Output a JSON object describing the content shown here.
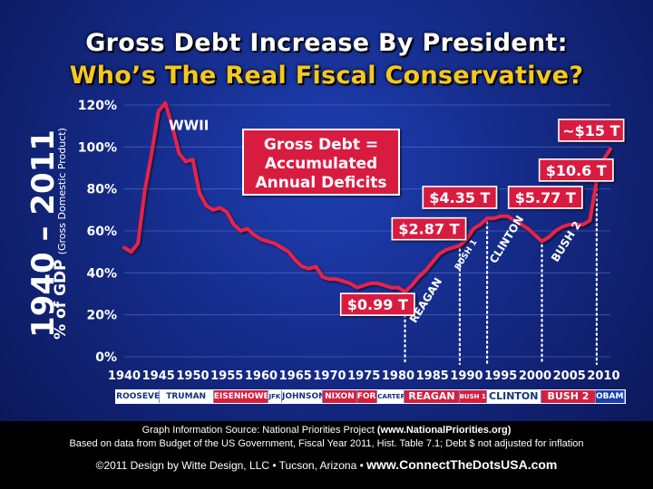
{
  "title_line1": "Gross Debt Increase By President:",
  "title_line2": "Who’s The Real Fiscal Conservative?",
  "side_years": "1940 – 2011",
  "side_ylabel_main": "% of GDP",
  "side_ylabel_sub": "(Gross Domestic Product)",
  "callout_box": [
    "Gross Debt =",
    "Accumulated",
    "Annual Deficits"
  ],
  "footer": {
    "line1_pre": "Graph Information Source: National Priorities Project ",
    "line1_bold": "(www.NationalPriorities.org)",
    "line2": "Based on data from Budget of the US Government, Fiscal Year 2011, Hist. Table 7.1; Debt $ not adjusted for inflation",
    "line3_pre": "©2011 Design by Witte Design, LLC • Tucson, Arizona  •  ",
    "line3_bold": "www.ConnectTheDotsUSA.com"
  },
  "presidents": [
    {
      "name": "ROOSEVELT",
      "start": 1940,
      "end": 1945,
      "color": "#1a3fa8"
    },
    {
      "name": "TRUMAN",
      "start": 1945,
      "end": 1953,
      "color": "#1a3fa8"
    },
    {
      "name": "EISENHOWER",
      "start": 1953,
      "end": 1961,
      "color": "#d42040"
    },
    {
      "name": "JFK",
      "start": 1961,
      "end": 1963,
      "color": "#1a3fa8"
    },
    {
      "name": "JOHNSON",
      "start": 1963,
      "end": 1969,
      "color": "#1a3fa8"
    },
    {
      "name": "NIXON",
      "start": 1969,
      "end": 1974,
      "color": "#d42040"
    },
    {
      "name": "FORD",
      "start": 1974,
      "end": 1977,
      "color": "#d42040"
    },
    {
      "name": "CARTER",
      "start": 1977,
      "end": 1981,
      "color": "#1a3fa8"
    },
    {
      "name": "REAGAN",
      "start": 1981,
      "end": 1989,
      "color": "#d42040"
    },
    {
      "name": "BUSH 1",
      "start": 1989,
      "end": 1993,
      "color": "#d42040"
    },
    {
      "name": "CLINTON",
      "start": 1993,
      "end": 2001,
      "color": "#1a3fa8"
    },
    {
      "name": "BUSH 2",
      "start": 2001,
      "end": 2009,
      "color": "#d42040"
    },
    {
      "name": "OBAMA",
      "start": 2009,
      "end": 2011,
      "color": "#1a3fa8"
    }
  ],
  "chart_data": {
    "type": "line",
    "title": "Gross Debt Increase By President",
    "subtitle": "Who’s The Real Fiscal Conservative?",
    "xlabel": "",
    "ylabel": "% of GDP (Gross Domestic Product)",
    "xlim": [
      1940,
      2011
    ],
    "ylim": [
      0,
      120
    ],
    "yticks": [
      0,
      20,
      40,
      60,
      80,
      100,
      120
    ],
    "ytick_labels": [
      "0%",
      "20%",
      "40%",
      "60%",
      "80%",
      "100%",
      "120%"
    ],
    "xticks": [
      1940,
      1945,
      1950,
      1955,
      1960,
      1965,
      1970,
      1975,
      1980,
      1985,
      1990,
      1995,
      2000,
      2005,
      2010
    ],
    "grid": true,
    "line_color": "#e8234a",
    "series": [
      {
        "x": [
          1940,
          1941,
          1942,
          1943,
          1944,
          1945,
          1946,
          1947,
          1948,
          1949,
          1950,
          1951,
          1952,
          1953,
          1954,
          1955,
          1956,
          1957,
          1958,
          1959,
          1960,
          1961,
          1962,
          1963,
          1964,
          1965,
          1966,
          1967,
          1968,
          1969,
          1970,
          1971,
          1972,
          1973,
          1974,
          1975,
          1976,
          1977,
          1978,
          1979,
          1980,
          1981,
          1982,
          1983,
          1984,
          1985,
          1986,
          1987,
          1988,
          1989,
          1990,
          1991,
          1992,
          1993,
          1994,
          1995,
          1996,
          1997,
          1998,
          1999,
          2000,
          2001,
          2002,
          2003,
          2004,
          2005,
          2006,
          2007,
          2008,
          2009,
          2010,
          2011
        ],
        "y": [
          52,
          50,
          54,
          79,
          97,
          117,
          121,
          110,
          97,
          93,
          94,
          78,
          72,
          70,
          71,
          69,
          63,
          60,
          61,
          58,
          56,
          55,
          54,
          52,
          50,
          46,
          43,
          42,
          43,
          38,
          37,
          37,
          36,
          35,
          33,
          34,
          35,
          35,
          34,
          33,
          33,
          31,
          34,
          38,
          41,
          45,
          49,
          51,
          52,
          53,
          56,
          61,
          63,
          66,
          66,
          67,
          67,
          65,
          63,
          61,
          58,
          55,
          57,
          60,
          62,
          63,
          63,
          63,
          65,
          84,
          94,
          99
        ]
      }
    ],
    "annotations": [
      {
        "text": "WWII",
        "x": 1946.5,
        "y": 115
      },
      {
        "text": "$0.99 T",
        "x": 1977,
        "y": 25
      },
      {
        "text": "$2.87 T",
        "x": 1984.5,
        "y": 61
      },
      {
        "text": "$4.35 T",
        "x": 1989,
        "y": 76
      },
      {
        "text": "$5.77 T",
        "x": 2001.5,
        "y": 76
      },
      {
        "text": "$10.6 T",
        "x": 2006,
        "y": 89
      },
      {
        "text": "~$15 T",
        "x": 2008.2,
        "y": 108
      }
    ],
    "term_markers": [
      1981,
      1989,
      1993,
      2001,
      2009
    ],
    "term_labels": [
      {
        "text": "REAGAN",
        "x": 1984.5,
        "y": 26
      },
      {
        "text": "BUSH 1",
        "x": 1990.2,
        "y": 48
      },
      {
        "text": "CLINTON",
        "x": 1996.3,
        "y": 55
      },
      {
        "text": "BUSH 2",
        "x": 2005,
        "y": 54
      }
    ]
  }
}
